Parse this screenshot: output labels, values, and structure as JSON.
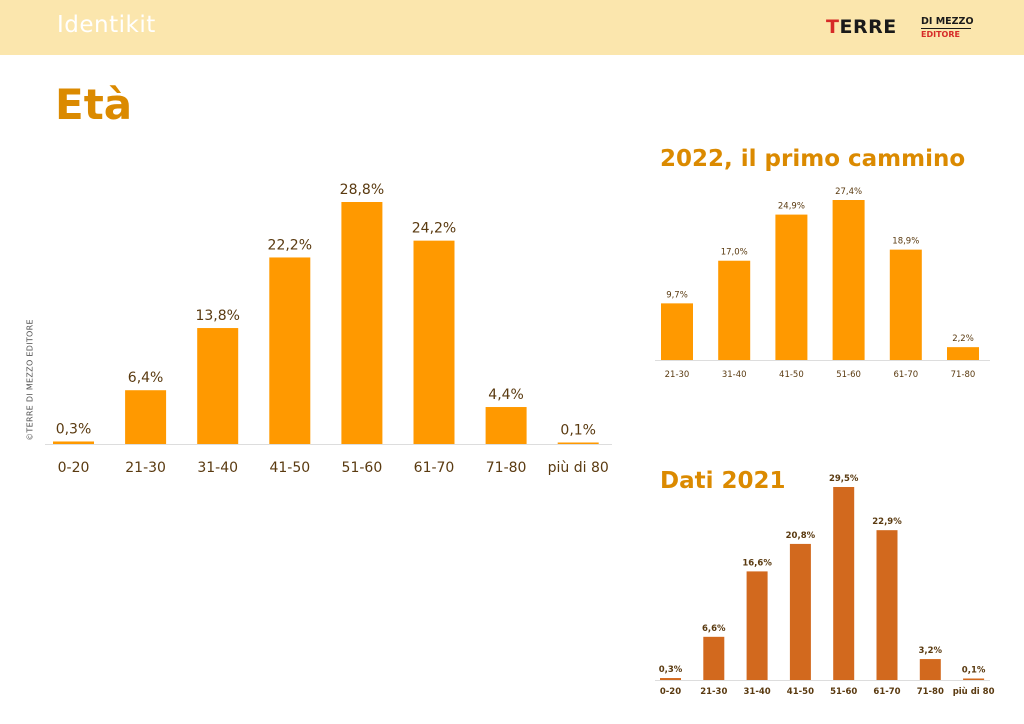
{
  "header": {
    "title": "Identikit"
  },
  "logo": {
    "main": "TERRE",
    "sub1": "DI MEZZO",
    "sub2": "EDITORE"
  },
  "page_title": "Età",
  "copyright": "©TERRE DI MEZZO EDITORE",
  "colors": {
    "header_bg": "#fbe6ad",
    "accent": "#db8a00",
    "bar_orange": "#ff9900",
    "bar_dark": "#d2691e"
  },
  "chart_data": [
    {
      "type": "bar",
      "title": "",
      "xlabel": "",
      "ylabel": "",
      "categories": [
        "0-20",
        "21-30",
        "31-40",
        "41-50",
        "51-60",
        "61-70",
        "71-80",
        "più di 80"
      ],
      "values": [
        0.3,
        6.4,
        13.8,
        22.2,
        28.8,
        24.2,
        4.4,
        0.1
      ],
      "labels": [
        "0,3%",
        "6,4%",
        "13,8%",
        "22,2%",
        "28,8%",
        "24,2%",
        "4,4%",
        "0,1%"
      ],
      "ylim": [
        0,
        30
      ],
      "grid": false,
      "color": "#ff9900"
    },
    {
      "type": "bar",
      "title": "2022, il primo cammino",
      "xlabel": "",
      "ylabel": "",
      "categories": [
        "21-30",
        "31-40",
        "41-50",
        "51-60",
        "61-70",
        "71-80"
      ],
      "values": [
        9.7,
        17.0,
        24.9,
        27.4,
        18.9,
        2.2
      ],
      "labels": [
        "9,7%",
        "17,0%",
        "24,9%",
        "27,4%",
        "18,9%",
        "2,2%"
      ],
      "ylim": [
        0,
        30
      ],
      "grid": false,
      "color": "#ff9900"
    },
    {
      "type": "bar",
      "title": "Dati 2021",
      "xlabel": "",
      "ylabel": "",
      "categories": [
        "0-20",
        "21-30",
        "31-40",
        "41-50",
        "51-60",
        "61-70",
        "71-80",
        "più di 80"
      ],
      "values": [
        0.3,
        6.6,
        16.6,
        20.8,
        29.5,
        22.9,
        3.2,
        0.1
      ],
      "labels": [
        "0,3%",
        "6,6%",
        "16,6%",
        "20,8%",
        "29,5%",
        "22,9%",
        "3,2%",
        "0,1%"
      ],
      "ylim": [
        0,
        30
      ],
      "grid": false,
      "color": "#d2691e"
    }
  ]
}
